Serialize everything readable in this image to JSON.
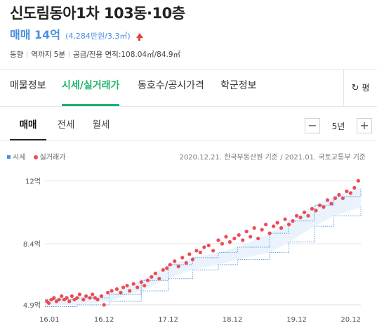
{
  "header": {
    "title": "신도림동아1차 103동·10층",
    "price_main": "매매 14억",
    "price_sub": "(4,284만원/3.3㎡)",
    "meta": [
      "동향",
      "역까지 5분",
      "공급/전용 면적:108.04㎡/84.9㎡"
    ]
  },
  "main_tabs": [
    "매물정보",
    "시세/실거래가",
    "동호수/공시가격",
    "학군정보"
  ],
  "refresh_label": "평",
  "sub_tabs": [
    "매매",
    "전세",
    "월세"
  ],
  "period": {
    "value": "5년",
    "minus": "−",
    "plus": "+"
  },
  "legend": {
    "market": "시세",
    "actual": "실거래가"
  },
  "source": "2020.12.21. 한국부동산원 기준 / 2021.01. 국토교통부 기준",
  "colors": {
    "accent": "#1eb46d",
    "price": "#4a8fe0",
    "dot": "#ee4a54",
    "band": "#eaf3fb"
  },
  "chart_data": {
    "type": "scatter",
    "y_ticks": [
      "12억",
      "8.4억",
      "4.9억"
    ],
    "y_tick_values": [
      12,
      8.4,
      4.9
    ],
    "x_ticks": [
      "16.01",
      "16.12",
      "17.12",
      "18.12",
      "19.12",
      "20.12"
    ],
    "x_tick_values": [
      2016.0,
      2016.92,
      2017.92,
      2018.92,
      2019.92,
      2020.92
    ],
    "xlim": [
      2016.0,
      2020.92
    ],
    "ylim": [
      4.7,
      12.3
    ],
    "market_band": {
      "x": [
        2016.0,
        2016.5,
        2017.0,
        2017.5,
        2017.92,
        2018.3,
        2018.7,
        2019.0,
        2019.5,
        2019.8,
        2020.2,
        2020.5,
        2020.92
      ],
      "low": [
        4.8,
        4.9,
        5.1,
        5.7,
        6.4,
        6.9,
        7.2,
        7.5,
        7.9,
        8.5,
        9.4,
        10.0,
        10.5
      ],
      "high": [
        5.2,
        5.3,
        5.5,
        6.3,
        7.2,
        7.6,
        7.9,
        8.2,
        9.0,
        9.7,
        10.6,
        11.1,
        11.6
      ]
    },
    "series": [
      {
        "name": "실거래가",
        "x": [
          2016.03,
          2016.06,
          2016.1,
          2016.14,
          2016.18,
          2016.22,
          2016.26,
          2016.3,
          2016.34,
          2016.38,
          2016.42,
          2016.46,
          2016.5,
          2016.54,
          2016.6,
          2016.64,
          2016.7,
          2016.74,
          2016.78,
          2016.82,
          2016.88,
          2016.92,
          2016.98,
          2017.04,
          2017.12,
          2017.18,
          2017.22,
          2017.28,
          2017.32,
          2017.38,
          2017.44,
          2017.5,
          2017.55,
          2017.6,
          2017.66,
          2017.72,
          2017.78,
          2017.84,
          2017.9,
          2017.95,
          2018.02,
          2018.08,
          2018.14,
          2018.2,
          2018.25,
          2018.3,
          2018.36,
          2018.42,
          2018.48,
          2018.55,
          2018.62,
          2018.7,
          2018.76,
          2018.82,
          2018.88,
          2018.95,
          2019.02,
          2019.08,
          2019.14,
          2019.2,
          2019.26,
          2019.32,
          2019.38,
          2019.44,
          2019.5,
          2019.56,
          2019.62,
          2019.68,
          2019.74,
          2019.8,
          2019.86,
          2019.92,
          2019.98,
          2020.04,
          2020.1,
          2020.16,
          2020.22,
          2020.28,
          2020.34,
          2020.4,
          2020.46,
          2020.52,
          2020.58,
          2020.64,
          2020.7,
          2020.76,
          2020.82,
          2020.88
        ],
        "values": [
          5.1,
          5.0,
          5.2,
          5.3,
          5.1,
          5.2,
          5.4,
          5.2,
          5.3,
          5.1,
          5.4,
          5.2,
          5.3,
          5.5,
          5.2,
          5.4,
          5.3,
          5.5,
          5.3,
          5.2,
          5.4,
          4.9,
          5.6,
          5.7,
          5.8,
          5.6,
          5.9,
          6.0,
          5.7,
          6.1,
          5.9,
          6.2,
          6.0,
          6.3,
          6.5,
          6.7,
          6.4,
          6.9,
          7.0,
          7.2,
          7.4,
          7.1,
          7.6,
          7.3,
          7.8,
          7.5,
          8.0,
          7.9,
          8.2,
          8.3,
          8.0,
          8.6,
          8.4,
          8.8,
          8.5,
          8.7,
          8.9,
          8.6,
          9.1,
          8.8,
          9.3,
          8.7,
          9.2,
          9.5,
          9.0,
          9.4,
          9.6,
          9.3,
          9.8,
          9.5,
          9.7,
          10.0,
          9.9,
          10.2,
          10.0,
          10.4,
          10.3,
          10.6,
          10.5,
          10.9,
          10.7,
          11.0,
          11.2,
          11.0,
          11.4,
          11.3,
          11.6,
          12.0
        ]
      }
    ]
  }
}
